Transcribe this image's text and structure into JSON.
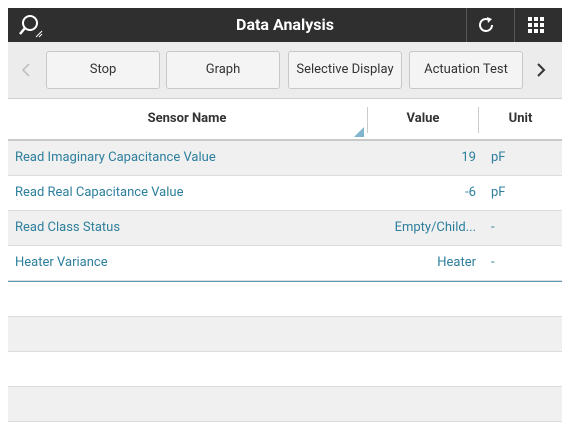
{
  "header": {
    "title": "Data Analysis"
  },
  "toolbar": {
    "buttons": [
      "Stop",
      "Graph",
      "Selective Display",
      "Actuation Test"
    ]
  },
  "table": {
    "columns": [
      "Sensor Name",
      "Value",
      "Unit"
    ],
    "rows": [
      [
        "Read Imaginary Capacitance Value",
        "19",
        "pF"
      ],
      [
        "Read Real Capacitance Value",
        "-6",
        "pF"
      ],
      [
        "Read Class Status",
        "Empty/Child...",
        "-"
      ],
      [
        "Heater Variance",
        "Heater",
        "-"
      ]
    ]
  }
}
